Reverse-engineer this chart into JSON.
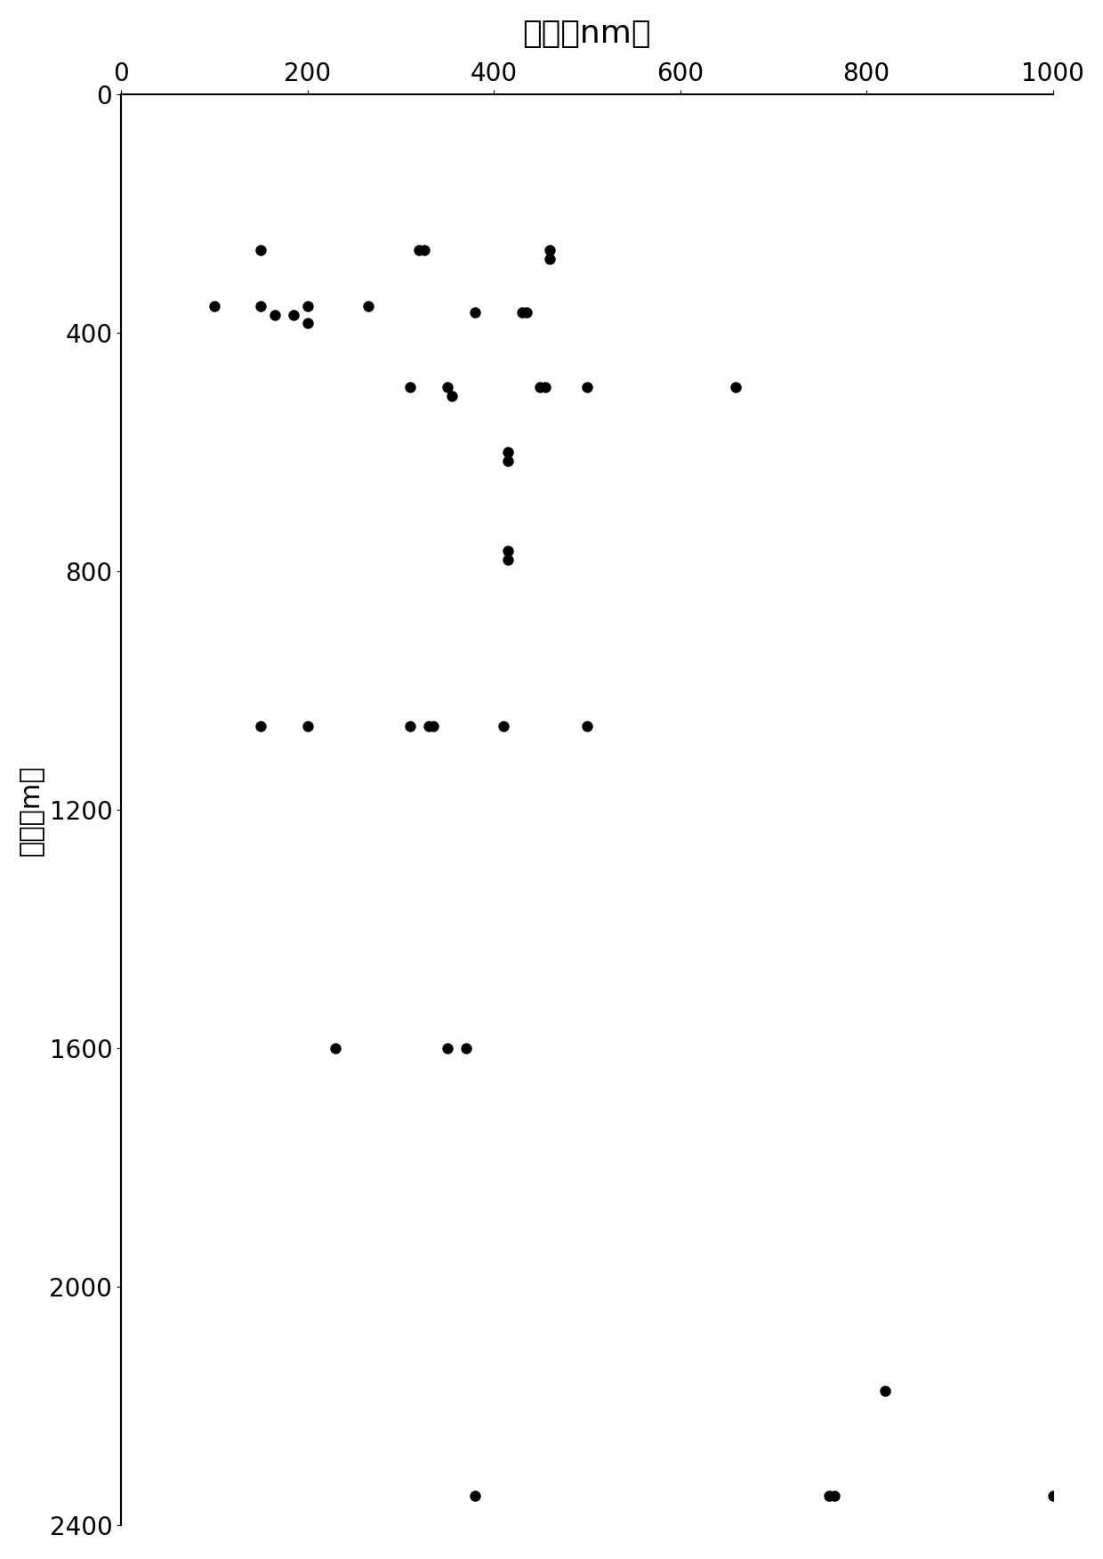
{
  "title": "缝宽（nm）",
  "ylabel": "埋深（m）",
  "xlim": [
    0,
    1000
  ],
  "ylim": [
    2400,
    0
  ],
  "xticks": [
    0,
    200,
    400,
    600,
    800,
    1000
  ],
  "yticks": [
    0,
    400,
    800,
    1200,
    1600,
    2000,
    2400
  ],
  "points": [
    [
      150,
      260
    ],
    [
      320,
      260
    ],
    [
      325,
      260
    ],
    [
      460,
      260
    ],
    [
      460,
      275
    ],
    [
      100,
      355
    ],
    [
      150,
      355
    ],
    [
      165,
      370
    ],
    [
      185,
      370
    ],
    [
      200,
      383
    ],
    [
      200,
      355
    ],
    [
      265,
      355
    ],
    [
      380,
      365
    ],
    [
      430,
      365
    ],
    [
      435,
      365
    ],
    [
      310,
      490
    ],
    [
      350,
      490
    ],
    [
      355,
      505
    ],
    [
      450,
      490
    ],
    [
      455,
      490
    ],
    [
      500,
      490
    ],
    [
      660,
      490
    ],
    [
      415,
      600
    ],
    [
      415,
      615
    ],
    [
      415,
      765
    ],
    [
      415,
      780
    ],
    [
      150,
      1060
    ],
    [
      200,
      1060
    ],
    [
      310,
      1060
    ],
    [
      330,
      1060
    ],
    [
      335,
      1060
    ],
    [
      410,
      1060
    ],
    [
      500,
      1060
    ],
    [
      230,
      1600
    ],
    [
      350,
      1600
    ],
    [
      370,
      1600
    ],
    [
      820,
      2175
    ],
    [
      380,
      2350
    ],
    [
      760,
      2350
    ],
    [
      765,
      2350
    ],
    [
      1000,
      2350
    ]
  ],
  "marker_color": "#000000",
  "marker_size": 80,
  "bg_color": "#ffffff",
  "title_fontsize": 26,
  "label_fontsize": 22,
  "tick_fontsize": 20
}
